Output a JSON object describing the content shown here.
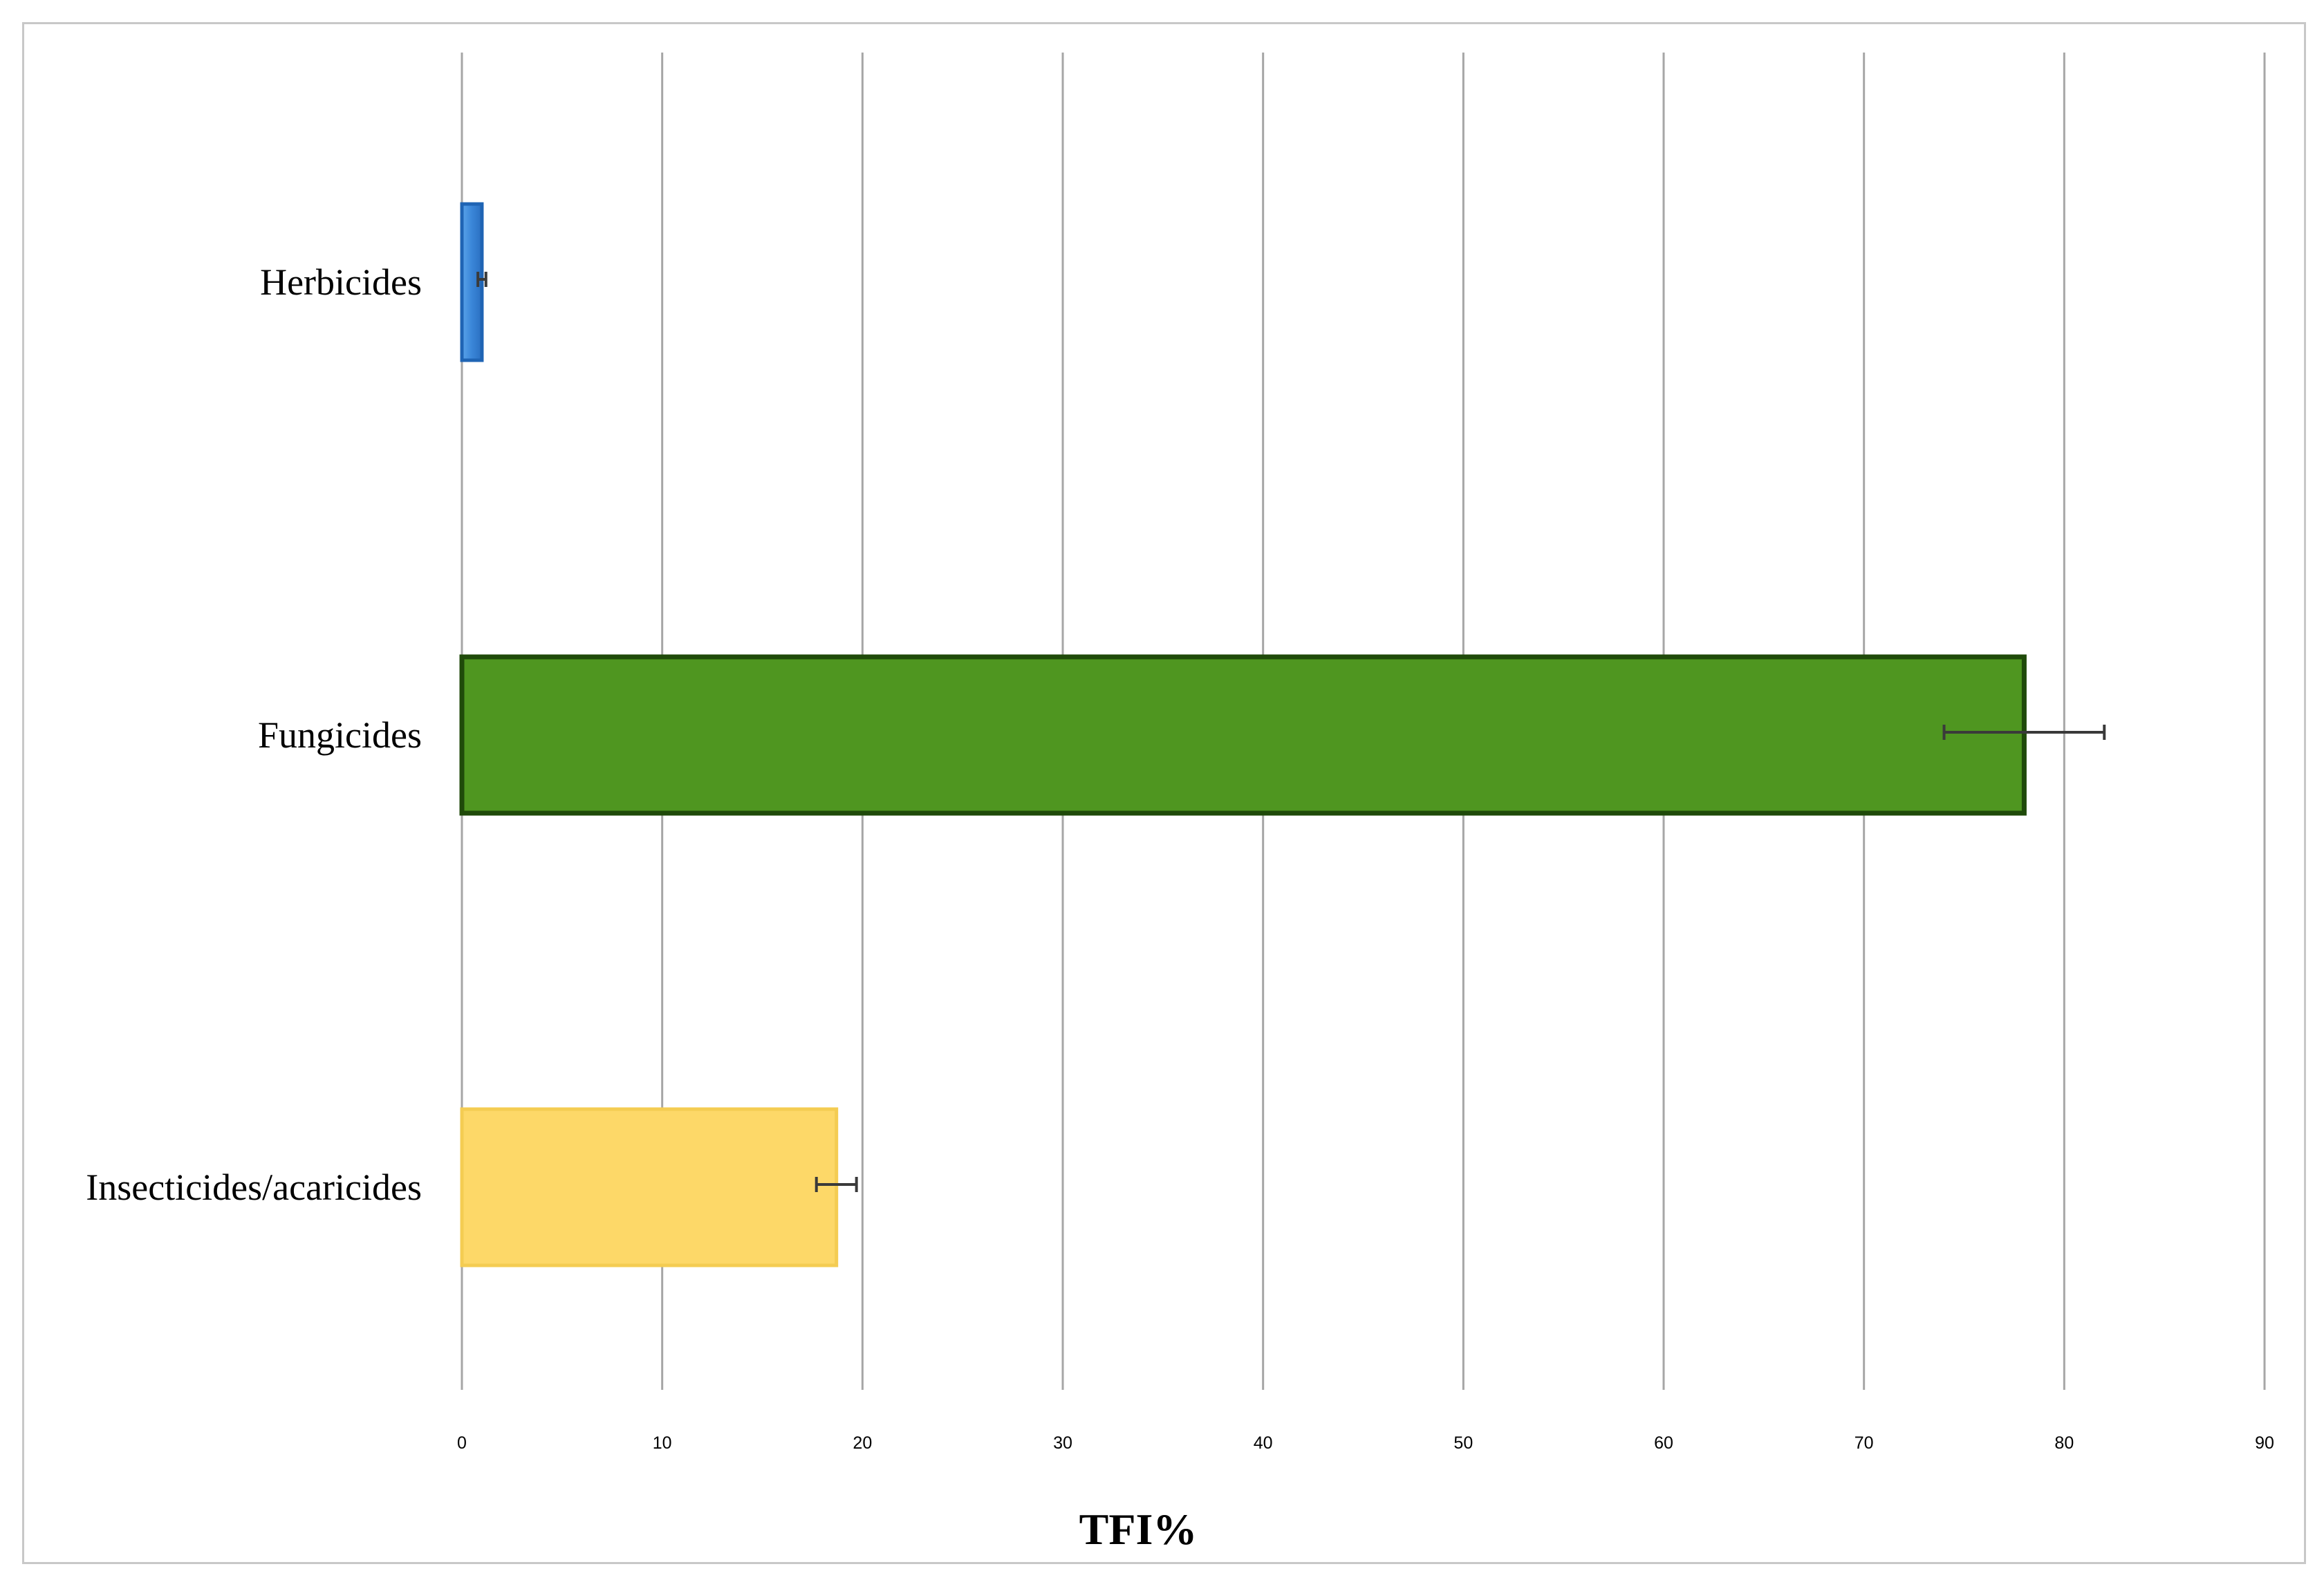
{
  "chart_data": {
    "type": "bar",
    "orientation": "horizontal",
    "categories": [
      "Herbicides",
      "Fungicides",
      "Insecticides/acaricides"
    ],
    "values": [
      1,
      78,
      18.7
    ],
    "error": [
      0.2,
      4,
      1
    ],
    "colors": [
      "#3a86d8",
      "#4f9620",
      "#fdd868"
    ],
    "border_colors": [
      "#1f64b4",
      "#1f4a0a",
      "#f4cc52"
    ],
    "xlabel": "TFI%",
    "ylabel": "",
    "title": "",
    "xlim": [
      0,
      90
    ],
    "xticks": [
      0,
      10,
      20,
      30,
      40,
      50,
      60,
      70,
      80,
      90
    ],
    "grid": "vertical",
    "legend": "none"
  }
}
